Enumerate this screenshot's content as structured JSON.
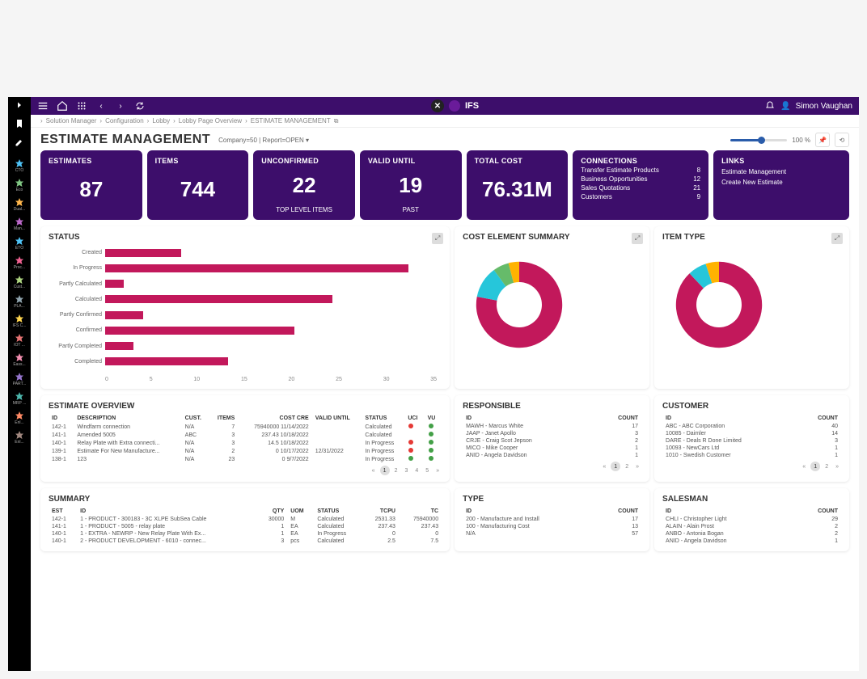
{
  "app": {
    "brand": "IFS",
    "user": "Simon Vaughan"
  },
  "breadcrumb": [
    "Solution Manager",
    "Configuration",
    "Lobby",
    "Lobby Page Overview",
    "ESTIMATE MANAGEMENT"
  ],
  "page": {
    "title": "ESTIMATE MANAGEMENT",
    "filters": "Company=50 | Report=OPEN ▾",
    "zoom": "100 %"
  },
  "leftnav": [
    {
      "label": "CTO",
      "color": "#4fc3f7"
    },
    {
      "label": "Eco",
      "color": "#81c784"
    },
    {
      "label": "Dual...",
      "color": "#ffb74d"
    },
    {
      "label": "Man...",
      "color": "#ba68c8"
    },
    {
      "label": "ETO",
      "color": "#4fc3f7"
    },
    {
      "label": "Proc...",
      "color": "#f06292"
    },
    {
      "label": "Cust...",
      "color": "#aed581"
    },
    {
      "label": "PLA...",
      "color": "#90a4ae"
    },
    {
      "label": "IFS C...",
      "color": "#ffd54f"
    },
    {
      "label": "IOT ...",
      "color": "#e57373"
    },
    {
      "label": "Eass...",
      "color": "#f48fb1"
    },
    {
      "label": "PART...",
      "color": "#9575cd"
    },
    {
      "label": "MRP ...",
      "color": "#4db6ac"
    },
    {
      "label": "Enl...",
      "color": "#ff8a65"
    },
    {
      "label": "Enl...",
      "color": "#a1887f"
    }
  ],
  "kpi": {
    "estimates": {
      "label": "ESTIMATES",
      "val": "87"
    },
    "items": {
      "label": "ITEMS",
      "val": "744"
    },
    "unconfirmed": {
      "label": "UNCONFIRMED",
      "val": "22",
      "sub": "TOP LEVEL ITEMS"
    },
    "valid": {
      "label": "VALID UNTIL",
      "val": "19",
      "sub": "PAST"
    },
    "total": {
      "label": "TOTAL COST",
      "val": "76.31M"
    },
    "connections": {
      "label": "CONNECTIONS",
      "rows": [
        {
          "k": "Transfer Estimate Products",
          "v": "8"
        },
        {
          "k": "Business Opportunities",
          "v": "12"
        },
        {
          "k": "Sales Quotations",
          "v": "21"
        },
        {
          "k": "Customers",
          "v": "9"
        }
      ]
    },
    "links": {
      "label": "LINKS",
      "rows": [
        "Estimate Management",
        "Create New Estimate"
      ]
    }
  },
  "status": {
    "title": "STATUS",
    "type": "bar-horizontal",
    "categories": [
      "Created",
      "In Progress",
      "Partly Calculated",
      "Calculated",
      "Partly Confirmed",
      "Confirmed",
      "Partly Completed",
      "Completed"
    ],
    "values": [
      8,
      32,
      2,
      24,
      4,
      20,
      3,
      13
    ],
    "xmax": 35,
    "xtick": 5,
    "bar_color": "#c2185b",
    "background": "#ffffff"
  },
  "cost_summary": {
    "title": "COST ELEMENT SUMMARY",
    "type": "donut",
    "slices": [
      {
        "label": "",
        "value": 78,
        "color": "#c2185b"
      },
      {
        "label": "",
        "value": 12,
        "color": "#26c6da"
      },
      {
        "label": "",
        "value": 6,
        "color": "#66bb6a"
      },
      {
        "label": "",
        "value": 4,
        "color": "#ffb300"
      }
    ]
  },
  "item_type": {
    "title": "ITEM TYPE",
    "type": "donut",
    "slices": [
      {
        "label": "",
        "value": 88,
        "color": "#c2185b"
      },
      {
        "label": "",
        "value": 7,
        "color": "#26c6da"
      },
      {
        "label": "",
        "value": 5,
        "color": "#ffb300"
      }
    ]
  },
  "overview": {
    "title": "ESTIMATE OVERVIEW",
    "cols": [
      "ID",
      "DESCRIPTION",
      "CUST.",
      "ITEMS",
      "COST CRE",
      "VALID UNTIL",
      "STATUS",
      "UCI",
      "VU"
    ],
    "rows": [
      [
        "142-1",
        "Windfarm connection",
        "N/A",
        "7",
        "75940000 11/14/2022",
        "",
        "Calculated",
        "r",
        "g"
      ],
      [
        "141-1",
        "Amended 5005",
        "ABC",
        "3",
        "237.43 10/18/2022",
        "",
        "Calculated",
        "",
        "g"
      ],
      [
        "140-1",
        "Relay Plate with Extra connecti...",
        "N/A",
        "3",
        "14.5 10/18/2022",
        "",
        "In Progress",
        "r",
        "g"
      ],
      [
        "139-1",
        "Estimate For New Manufacture...",
        "N/A",
        "2",
        "0 10/17/2022",
        "12/31/2022",
        "In Progress",
        "r",
        "g"
      ],
      [
        "138-1",
        "123",
        "N/A",
        "23",
        "0 9/7/2022",
        "",
        "In Progress",
        "g",
        "g"
      ]
    ],
    "pages": [
      "1",
      "2",
      "3",
      "4",
      "5"
    ]
  },
  "responsible": {
    "title": "RESPONSIBLE",
    "cols": [
      "ID",
      "COUNT"
    ],
    "rows": [
      [
        "MAWH - Marcus White",
        "17"
      ],
      [
        "JAAP - Janet Apollo",
        "3"
      ],
      [
        "CRJE - Craig Scot Jepson",
        "2"
      ],
      [
        "MICO - Mike Cooper",
        "1"
      ],
      [
        "ANID - Angela Davidson",
        "1"
      ]
    ],
    "pages": [
      "1",
      "2"
    ]
  },
  "customer": {
    "title": "CUSTOMER",
    "cols": [
      "ID",
      "COUNT"
    ],
    "rows": [
      [
        "ABC - ABC Corporation",
        "40"
      ],
      [
        "10085 - Daimler",
        "14"
      ],
      [
        "DARE - Deals R Done Limited",
        "3"
      ],
      [
        "10093 - NewCars Ltd",
        "1"
      ],
      [
        "1010 - Swedish Customer",
        "1"
      ]
    ],
    "pages": [
      "1",
      "2"
    ]
  },
  "summary": {
    "title": "SUMMARY",
    "cols": [
      "EST",
      "ID",
      "QTY",
      "UOM",
      "STATUS",
      "TCPU",
      "TC"
    ],
    "rows": [
      [
        "142-1",
        "1 - PRODUCT - 300183 - 3C XLPE SubSea Cable",
        "30000",
        "M",
        "Calculated",
        "2531.33",
        "75940000"
      ],
      [
        "141-1",
        "1 - PRODUCT - 5005 - relay plate",
        "1",
        "EA",
        "Calculated",
        "237.43",
        "237.43"
      ],
      [
        "140-1",
        "1 - EXTRA - NEWRP - New Relay Plate With Ex...",
        "1",
        "EA",
        "In Progress",
        "0",
        "0"
      ],
      [
        "140-1",
        "2 - PRODUCT DEVELOPMENT - 6010 - connec...",
        "3",
        "pcs",
        "Calculated",
        "2.5",
        "7.5"
      ]
    ]
  },
  "type": {
    "title": "TYPE",
    "cols": [
      "ID",
      "COUNT"
    ],
    "rows": [
      [
        "200 - Manufacture and Install",
        "17"
      ],
      [
        "100 - Manufacturing Cost",
        "13"
      ],
      [
        "N/A",
        "57"
      ]
    ]
  },
  "salesman": {
    "title": "SALESMAN",
    "cols": [
      "ID",
      "COUNT"
    ],
    "rows": [
      [
        "CHLI - Christopher Light",
        "29"
      ],
      [
        "ALAIN - Alain Prost",
        "2"
      ],
      [
        "ANBO - Antonia Bogan",
        "2"
      ],
      [
        "ANID - Angela Davidson",
        "1"
      ]
    ]
  },
  "dot_colors": {
    "r": "#e53935",
    "g": "#43a047"
  }
}
